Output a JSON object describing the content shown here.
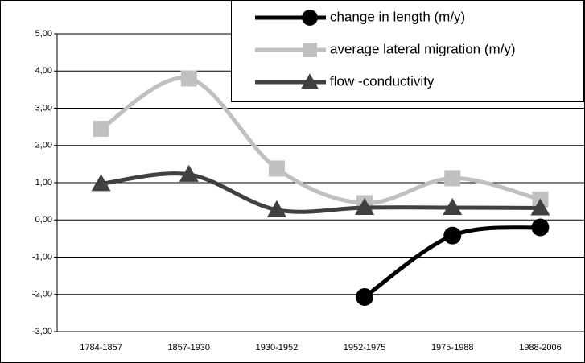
{
  "chart_data": {
    "type": "line",
    "categories": [
      "1784-1857",
      "1857-1930",
      "1930-1952",
      "1952-1975",
      "1975-1988",
      "1988-2006"
    ],
    "series": [
      {
        "name": "change in length (m/y)",
        "color": "#000000",
        "marker": "circle",
        "values": [
          null,
          null,
          null,
          -2.07,
          -0.42,
          -0.2
        ]
      },
      {
        "name": "average lateral migration (m/y)",
        "color": "#c0c0c0",
        "marker": "square",
        "values": [
          2.45,
          3.8,
          1.38,
          0.45,
          1.12,
          0.55
        ]
      },
      {
        "name": "flow -conductivity",
        "color": "#404040",
        "marker": "triangle",
        "values": [
          0.97,
          1.22,
          0.27,
          0.33,
          0.33,
          0.32
        ]
      }
    ],
    "ylim": [
      -3,
      5
    ],
    "yticks": [
      {
        "value": -3,
        "label": "-3,00"
      },
      {
        "value": -2,
        "label": "-2,00"
      },
      {
        "value": -1,
        "label": "-1,00"
      },
      {
        "value": 0,
        "label": "0,00"
      },
      {
        "value": 1,
        "label": "1,00"
      },
      {
        "value": 2,
        "label": "2,00"
      },
      {
        "value": 3,
        "label": "3,00"
      },
      {
        "value": 4,
        "label": "4,00"
      },
      {
        "value": 5,
        "label": "5,00"
      }
    ],
    "grid": true,
    "smooth": true,
    "legend": "upper right"
  }
}
